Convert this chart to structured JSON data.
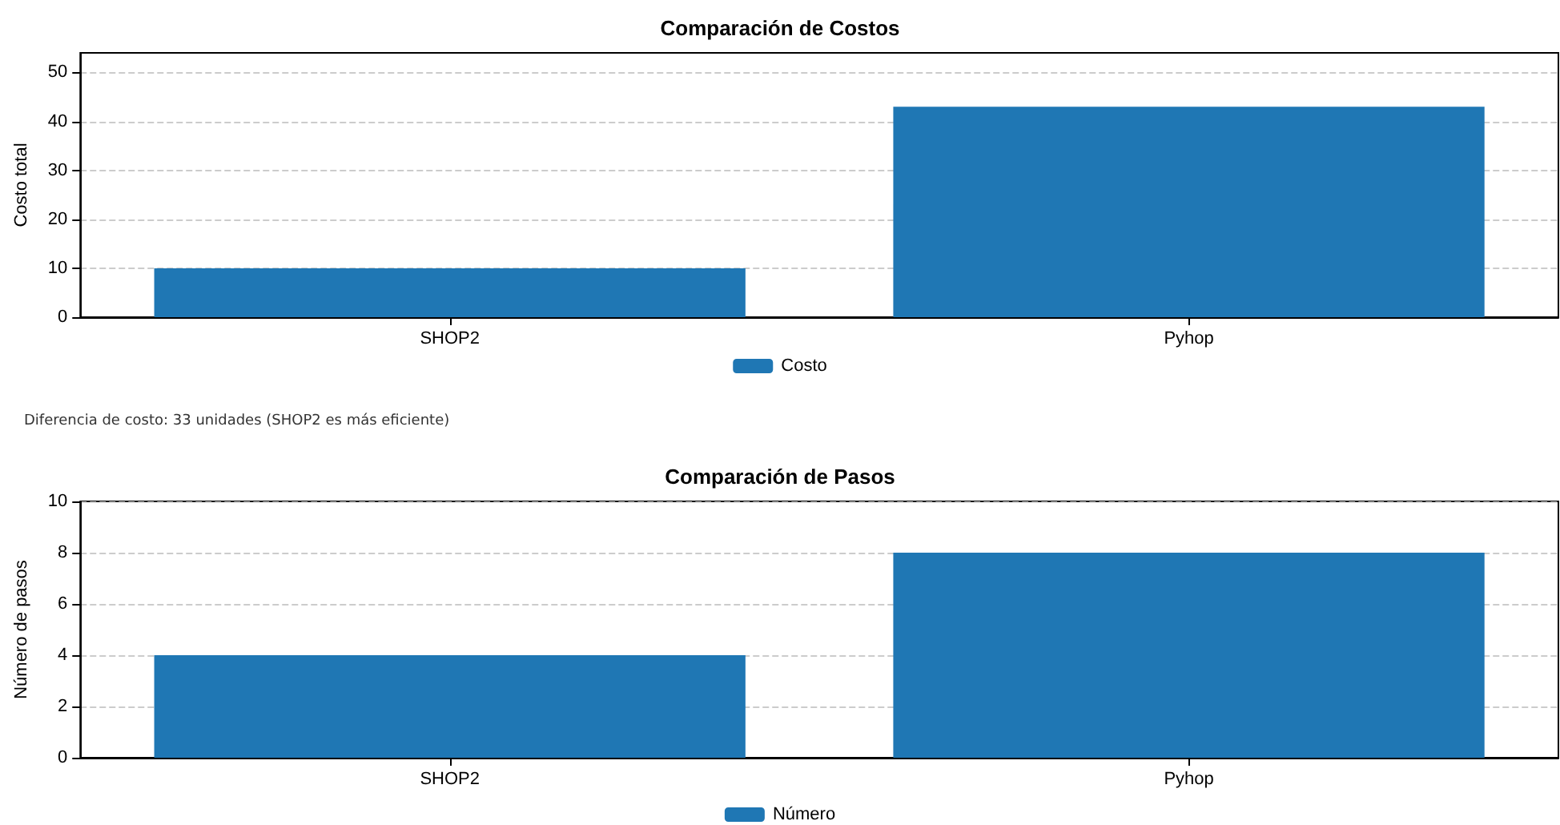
{
  "chart_data": [
    {
      "type": "bar",
      "title": "Comparación de Costos",
      "ylabel": "Costo total",
      "categories": [
        "SHOP2",
        "Pyhop"
      ],
      "series": [
        {
          "name": "Costo",
          "color": "#1f77b4",
          "values": [
            10,
            43
          ]
        }
      ],
      "ylim": [
        0,
        54
      ],
      "yticks": [
        0,
        10,
        20,
        30,
        40,
        50
      ],
      "grid": "y",
      "legend": "bottom",
      "annotations": [
        "Diferencia de costo: 33 unidades  (SHOP2 es más eficiente)"
      ]
    },
    {
      "type": "bar",
      "title": "Comparación de Pasos",
      "ylabel": "Número de pasos",
      "categories": [
        "SHOP2",
        "Pyhop"
      ],
      "series": [
        {
          "name": "Número",
          "color": "#1f77b4",
          "values": [
            4,
            8
          ]
        }
      ],
      "ylim": [
        0,
        10
      ],
      "yticks": [
        0,
        2,
        4,
        6,
        8,
        10
      ],
      "grid": "y",
      "legend": "bottom"
    }
  ]
}
